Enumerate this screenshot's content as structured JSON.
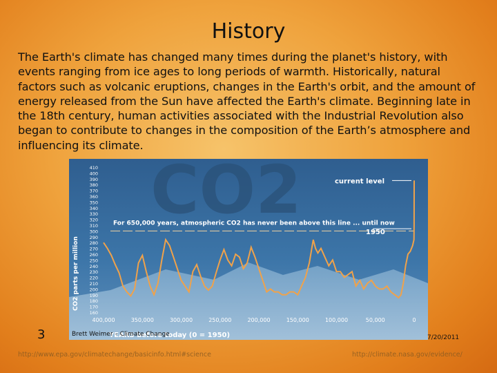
{
  "slide": {
    "title": "History",
    "body": "The Earth's climate has changed many times during the planet's history, with events ranging from ice ages to long periods of warmth. Historically, natural factors such as volcanic eruptions, changes in the Earth's orbit, and the amount of energy released from the Sun have affected the Earth's climate. Beginning late in the 18th century, human activities associated with the Industrial Revolution also began to contribute to changes in the composition of the Earth’s atmosphere and influencing its climate.",
    "slide_number": "3",
    "footer": "Brett Weimer – Climate Change",
    "date": "7/20/2011",
    "link_left": "http://www.epa.gov/climatechange/basicinfo.html#science",
    "link_right": "http://climate.nasa.gov/evidence/"
  },
  "chart_data": {
    "type": "line",
    "background_text": "CO2",
    "ylabel": "CO2 parts per million",
    "xlabel": "YEARS before today (0 = 1950)",
    "annotation_threshold": "For 650,000 years, atmospheric CO2 has never been above this line ... until now",
    "annotation_current": "current level",
    "annotation_1950": "1950",
    "y_ticks": [
      410,
      400,
      390,
      380,
      370,
      360,
      350,
      340,
      330,
      320,
      310,
      300,
      290,
      280,
      270,
      260,
      250,
      240,
      230,
      220,
      210,
      200,
      190,
      180,
      170,
      160
    ],
    "x_ticks": [
      "400,000",
      "350,000",
      "300,000",
      "250,000",
      "200,000",
      "150,000",
      "100,000",
      "50,000",
      "0"
    ],
    "xlim": [
      400000,
      0
    ],
    "ylim": [
      160,
      410
    ],
    "threshold": 300,
    "current_level": 387,
    "level_1950": 311,
    "series": [
      {
        "x": [
          400000,
          395000,
          390000,
          385000,
          380000,
          375000,
          370000,
          365000,
          360000,
          355000,
          350000,
          345000,
          340000,
          335000,
          330000,
          325000,
          320000,
          315000,
          310000,
          305000,
          300000,
          295000,
          290000,
          285000,
          280000,
          275000,
          270000,
          265000,
          260000,
          255000,
          250000,
          245000,
          240000,
          235000,
          230000,
          225000,
          220000,
          215000,
          210000,
          205000,
          200000,
          195000,
          190000,
          185000,
          180000,
          175000,
          170000,
          165000,
          160000,
          155000,
          150000,
          145000,
          140000,
          135000,
          130000,
          127000,
          124000,
          120000,
          115000,
          110000,
          105000,
          100000,
          95000,
          90000,
          85000,
          80000,
          75000,
          70000,
          65000,
          60000,
          55000,
          50000,
          45000,
          40000,
          35000,
          30000,
          25000,
          20000,
          17000,
          14000,
          11000,
          8000,
          5000,
          2000,
          300,
          100,
          0
        ],
        "y": [
          280,
          270,
          258,
          242,
          228,
          205,
          195,
          188,
          200,
          245,
          258,
          230,
          205,
          190,
          210,
          250,
          285,
          275,
          255,
          235,
          215,
          205,
          195,
          230,
          242,
          222,
          205,
          198,
          205,
          228,
          250,
          268,
          250,
          240,
          260,
          255,
          235,
          245,
          272,
          255,
          235,
          215,
          195,
          200,
          195,
          195,
          190,
          190,
          195,
          195,
          190,
          205,
          220,
          245,
          285,
          270,
          262,
          270,
          255,
          240,
          250,
          230,
          230,
          220,
          225,
          230,
          205,
          215,
          200,
          210,
          215,
          205,
          200,
          200,
          205,
          195,
          190,
          185,
          190,
          210,
          240,
          260,
          265,
          275,
          285,
          310,
          387
        ]
      }
    ]
  }
}
